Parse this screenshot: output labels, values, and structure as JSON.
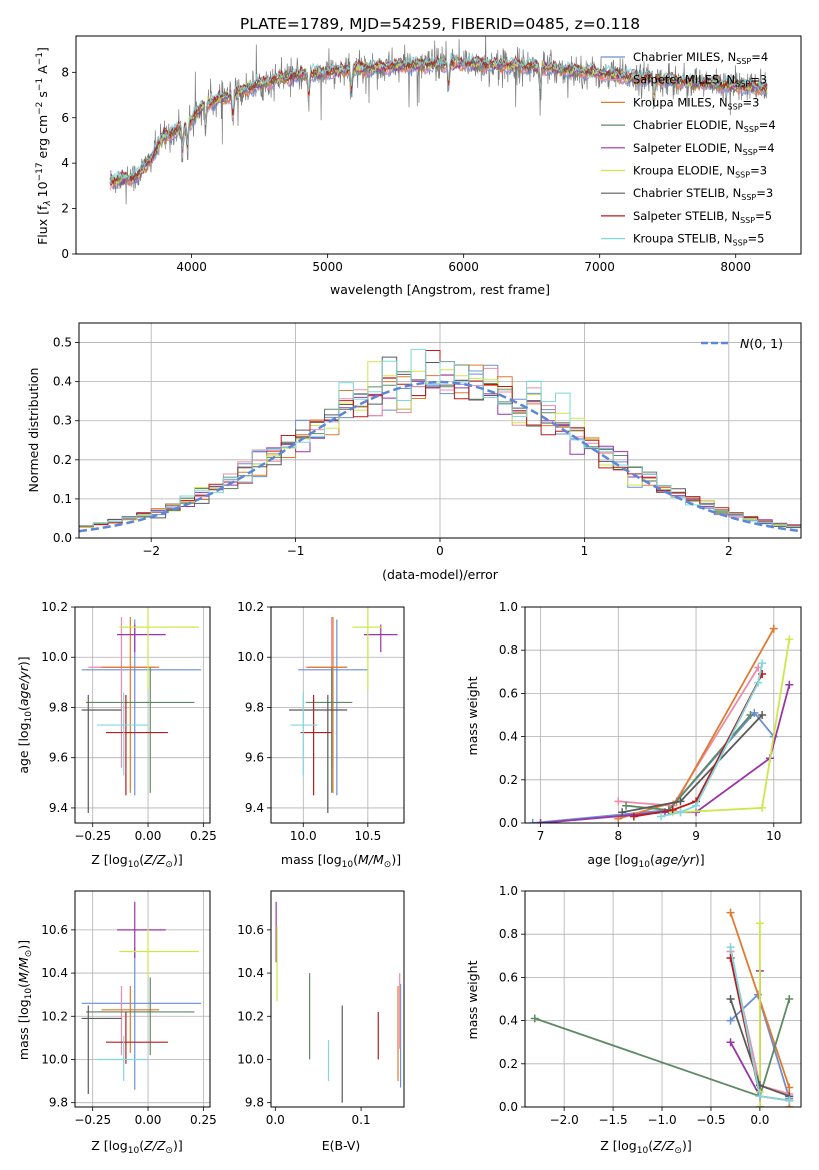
{
  "figure": {
    "title": "PLATE=1789, MJD=54259, FIBERID=0485, z=0.118"
  },
  "models": [
    {
      "name": "Chabrier MILES, N_SSP=4",
      "name_main": "Chabrier MILES, N",
      "name_sub": "SSP",
      "name_tail": "=4",
      "color": "#6a8fd8"
    },
    {
      "name": "Salpeter MILES, N_SSP=3",
      "name_main": "Salpeter MILES, N",
      "name_sub": "SSP",
      "name_tail": "=3",
      "color": "#f08aa8"
    },
    {
      "name": "Kroupa MILES, N_SSP=3",
      "name_main": "Kroupa MILES, N",
      "name_sub": "SSP",
      "name_tail": "=3",
      "color": "#e07a2e"
    },
    {
      "name": "Chabrier ELODIE, N_SSP=4",
      "name_main": "Chabrier ELODIE, N",
      "name_sub": "SSP",
      "name_tail": "=4",
      "color": "#5f8a64"
    },
    {
      "name": "Salpeter ELODIE, N_SSP=4",
      "name_main": "Salpeter ELODIE, N",
      "name_sub": "SSP",
      "name_tail": "=4",
      "color": "#9a35a8"
    },
    {
      "name": "Kroupa ELODIE, N_SSP=3",
      "name_main": "Kroupa ELODIE, N",
      "name_sub": "SSP",
      "name_tail": "=3",
      "color": "#cce84a"
    },
    {
      "name": "Chabrier STELIB, N_SSP=3",
      "name_main": "Chabrier STELIB, N",
      "name_sub": "SSP",
      "name_tail": "=3",
      "color": "#5a5a5a"
    },
    {
      "name": "Salpeter STELIB, N_SSP=5",
      "name_main": "Salpeter STELIB, N",
      "name_sub": "SSP",
      "name_tail": "=5",
      "color": "#b81c1c"
    },
    {
      "name": "Kroupa STELIB, N_SSP=5",
      "name_main": "Kroupa STELIB, N",
      "name_sub": "SSP",
      "name_tail": "=5",
      "color": "#7fd8dd"
    }
  ],
  "chart_data": [
    {
      "id": "spectrum",
      "type": "line",
      "xlabel": "wavelength [Angstrom, rest frame]",
      "ylabel": "Flux [f_λ 10^-17 erg cm^-2 s^-1 A^-1]",
      "ylabel_parts": {
        "a": "Flux [f",
        "b": "λ",
        "c": "10",
        "d": "−17",
        "e": " erg cm",
        "f": "−2",
        "g": " s",
        "h": "−1",
        "i": " A",
        "j": "−1",
        "k": "]"
      },
      "xlim": [
        3150,
        8480
      ],
      "ylim": [
        0,
        9.6
      ],
      "xticks": [
        4000,
        5000,
        6000,
        7000,
        8000
      ],
      "yticks": [
        0,
        2,
        4,
        6,
        8
      ],
      "x_range": [
        3400,
        8230
      ],
      "continuum_knots": {
        "x": [
          3400,
          3600,
          3700,
          3800,
          3950,
          4100,
          4300,
          4500,
          4800,
          5000,
          5300,
          5600,
          6000,
          6400,
          6800,
          7200,
          7600,
          8000,
          8230
        ],
        "y": [
          3.2,
          3.4,
          4.2,
          5.2,
          5.6,
          6.6,
          7.0,
          7.5,
          7.9,
          8.0,
          8.2,
          8.3,
          8.4,
          8.3,
          8.1,
          7.8,
          7.6,
          7.4,
          7.3
        ]
      },
      "absorption_lines": [
        3934,
        3969,
        4102,
        4304,
        4861,
        5175,
        5890,
        6563,
        7400
      ],
      "legend": "upper-right",
      "grid": false
    },
    {
      "id": "residuals",
      "type": "histogram",
      "xlabel": "(data-model)/error",
      "ylabel": "Normed distribution",
      "xlim": [
        -2.5,
        2.5
      ],
      "ylim": [
        0,
        0.55
      ],
      "xticks": [
        -2,
        -1,
        0,
        1,
        2
      ],
      "yticks": [
        0.0,
        0.1,
        0.2,
        0.3,
        0.4,
        0.5
      ],
      "bin_width": 0.1,
      "bin_range": [
        -2.5,
        2.5
      ],
      "reference": {
        "label": "N(0,1)",
        "label_main": "N",
        "label_tail": "(0, 1)",
        "color": "#5b86d9",
        "mean": 0,
        "sigma": 1
      },
      "legend": "upper-right",
      "grid": true
    },
    {
      "id": "age_vs_Z",
      "type": "errorbar",
      "xlabel": "Z [log10(Z/Z_sun)]",
      "ylabel": "age [log10(age/yr)]",
      "xlim": [
        -0.33,
        0.28
      ],
      "ylim": [
        9.34,
        10.2
      ],
      "xticks": [
        -0.25,
        0.0,
        0.25
      ],
      "yticks": [
        9.4,
        9.6,
        9.8,
        10.0,
        10.2
      ],
      "points": [
        {
          "model": 0,
          "x": -0.06,
          "xerr": [
            0.24,
            0.3
          ],
          "y": 9.95,
          "yerr": [
            0.5,
            0.2
          ]
        },
        {
          "model": 1,
          "x": -0.12,
          "xerr": [
            0.15,
            0.15
          ],
          "y": 9.96,
          "yerr": [
            0.4,
            0.2
          ]
        },
        {
          "model": 2,
          "x": -0.08,
          "xerr": [
            0.13,
            0.13
          ],
          "y": 9.96,
          "yerr": [
            0.5,
            0.2
          ]
        },
        {
          "model": 3,
          "x": 0.01,
          "xerr": [
            0.29,
            0.2
          ],
          "y": 9.82,
          "yerr": [
            0.36,
            0.14
          ]
        },
        {
          "model": 4,
          "x": -0.06,
          "xerr": [
            0.08,
            0.14
          ],
          "y": 10.09,
          "yerr": [
            0.07,
            0.04
          ]
        },
        {
          "model": 5,
          "x": 0.0,
          "xerr": [
            0.13,
            0.23
          ],
          "y": 10.12,
          "yerr": [
            0.25,
            0.08
          ]
        },
        {
          "model": 6,
          "x": -0.27,
          "xerr": [
            0.03,
            0.15
          ],
          "y": 9.79,
          "yerr": [
            0.41,
            0.06
          ]
        },
        {
          "model": 7,
          "x": -0.1,
          "xerr": [
            0.09,
            0.19
          ],
          "y": 9.7,
          "yerr": [
            0.25,
            0.15
          ]
        },
        {
          "model": 8,
          "x": -0.11,
          "xerr": [
            0.12,
            0.11
          ],
          "y": 9.73,
          "yerr": [
            0.2,
            0.13
          ]
        }
      ],
      "grid": true
    },
    {
      "id": "age_vs_mass",
      "type": "errorbar",
      "xlabel": "mass [log10(M/M_sun)]",
      "ylabel": "",
      "xlim": [
        9.75,
        10.78
      ],
      "ylim": [
        9.34,
        10.2
      ],
      "xticks": [
        10.0,
        10.5
      ],
      "yticks": [
        9.4,
        9.6,
        9.8,
        10.0,
        10.2
      ],
      "points": [
        {
          "model": 0,
          "x": 10.26,
          "xerr": [
            0.3,
            0.24
          ],
          "y": 9.95,
          "yerr": [
            0.5,
            0.2
          ]
        },
        {
          "model": 1,
          "x": 10.22,
          "xerr": [
            0.2,
            0.12
          ],
          "y": 9.96,
          "yerr": [
            0.4,
            0.2
          ]
        },
        {
          "model": 2,
          "x": 10.23,
          "xerr": [
            0.2,
            0.11
          ],
          "y": 9.96,
          "yerr": [
            0.5,
            0.2
          ]
        },
        {
          "model": 3,
          "x": 10.22,
          "xerr": [
            0.2,
            0.16
          ],
          "y": 9.82,
          "yerr": [
            0.36,
            0.14
          ]
        },
        {
          "model": 4,
          "x": 10.6,
          "xerr": [
            0.13,
            0.13
          ],
          "y": 10.09,
          "yerr": [
            0.07,
            0.04
          ]
        },
        {
          "model": 5,
          "x": 10.5,
          "xerr": [
            0.12,
            0.11
          ],
          "y": 10.12,
          "yerr": [
            0.25,
            0.08
          ]
        },
        {
          "model": 6,
          "x": 10.19,
          "xerr": [
            0.3,
            0.15
          ],
          "y": 9.79,
          "yerr": [
            0.41,
            0.06
          ]
        },
        {
          "model": 7,
          "x": 10.08,
          "xerr": [
            0.1,
            0.14
          ],
          "y": 9.7,
          "yerr": [
            0.25,
            0.15
          ]
        },
        {
          "model": 8,
          "x": 10.0,
          "xerr": [
            0.1,
            0.11
          ],
          "y": 9.73,
          "yerr": [
            0.2,
            0.13
          ]
        }
      ],
      "grid": true
    },
    {
      "id": "mass_weight_vs_age",
      "type": "line",
      "xlabel": "age [log10(age/yr)]",
      "ylabel": "mass weight",
      "xlim": [
        6.8,
        10.35
      ],
      "ylim": [
        0,
        1.0
      ],
      "xticks": [
        7,
        8,
        9,
        10
      ],
      "yticks": [
        0.0,
        0.2,
        0.4,
        0.6,
        0.8,
        1.0
      ],
      "series": [
        {
          "model": 0,
          "x": [
            6.9,
            8.65,
            9.75,
            10.0
          ],
          "y": [
            0.0,
            0.06,
            0.51,
            0.4
          ]
        },
        {
          "model": 1,
          "x": [
            8.0,
            8.7,
            9.8
          ],
          "y": [
            0.1,
            0.08,
            0.72
          ]
        },
        {
          "model": 2,
          "x": [
            8.0,
            8.75,
            10.0
          ],
          "y": [
            0.02,
            0.1,
            0.9
          ]
        },
        {
          "model": 3,
          "x": [
            8.1,
            8.65,
            9.7
          ],
          "y": [
            0.08,
            0.06,
            0.5
          ]
        },
        {
          "model": 4,
          "x": [
            7.0,
            8.6,
            9.0,
            9.95,
            10.2
          ],
          "y": [
            0.0,
            0.05,
            0.05,
            0.3,
            0.64
          ]
        },
        {
          "model": 5,
          "x": [
            8.7,
            8.8,
            9.85,
            10.2
          ],
          "y": [
            0.05,
            0.05,
            0.07,
            0.85
          ]
        },
        {
          "model": 6,
          "x": [
            8.05,
            8.8,
            9.85
          ],
          "y": [
            0.05,
            0.1,
            0.5
          ]
        },
        {
          "model": 7,
          "x": [
            8.2,
            8.7,
            9.0,
            9.85
          ],
          "y": [
            0.03,
            0.06,
            0.1,
            0.69
          ]
        },
        {
          "model": 8,
          "x": [
            8.55,
            8.8,
            9.0,
            9.8,
            9.85
          ],
          "y": [
            0.03,
            0.05,
            0.08,
            0.65,
            0.74
          ]
        }
      ],
      "grid": true
    },
    {
      "id": "mass_vs_Z",
      "type": "errorbar",
      "xlabel": "Z [log10(Z/Z_sun)]",
      "ylabel": "mass [log10(M/M_sun)]",
      "xlim": [
        -0.33,
        0.28
      ],
      "ylim": [
        9.78,
        10.78
      ],
      "xticks": [
        -0.25,
        0.0,
        0.25
      ],
      "yticks": [
        9.8,
        10.0,
        10.2,
        10.4,
        10.6
      ],
      "points": [
        {
          "model": 0,
          "x": -0.06,
          "xerr": [
            0.24,
            0.3
          ],
          "y": 10.26,
          "yerr": [
            0.4,
            0.26
          ]
        },
        {
          "model": 1,
          "x": -0.12,
          "xerr": [
            0.15,
            0.15
          ],
          "y": 10.22,
          "yerr": [
            0.2,
            0.12
          ]
        },
        {
          "model": 2,
          "x": -0.08,
          "xerr": [
            0.13,
            0.13
          ],
          "y": 10.23,
          "yerr": [
            0.2,
            0.11
          ]
        },
        {
          "model": 3,
          "x": 0.01,
          "xerr": [
            0.29,
            0.2
          ],
          "y": 10.22,
          "yerr": [
            0.2,
            0.16
          ]
        },
        {
          "model": 4,
          "x": -0.06,
          "xerr": [
            0.08,
            0.14
          ],
          "y": 10.6,
          "yerr": [
            0.13,
            0.13
          ]
        },
        {
          "model": 5,
          "x": 0.0,
          "xerr": [
            0.13,
            0.23
          ],
          "y": 10.5,
          "yerr": [
            0.12,
            0.11
          ]
        },
        {
          "model": 6,
          "x": -0.27,
          "xerr": [
            0.03,
            0.15
          ],
          "y": 10.19,
          "yerr": [
            0.35,
            0.06
          ]
        },
        {
          "model": 7,
          "x": -0.1,
          "xerr": [
            0.09,
            0.19
          ],
          "y": 10.08,
          "yerr": [
            0.1,
            0.14
          ]
        },
        {
          "model": 8,
          "x": -0.11,
          "xerr": [
            0.12,
            0.11
          ],
          "y": 10.0,
          "yerr": [
            0.1,
            0.11
          ]
        }
      ],
      "grid": true
    },
    {
      "id": "mass_vs_EBV",
      "type": "errorbar",
      "xlabel": "E(B-V)",
      "ylabel": "",
      "xlim": [
        -0.005,
        0.15
      ],
      "ylim": [
        9.78,
        10.78
      ],
      "xticks": [
        0.0,
        0.1
      ],
      "yticks": [
        9.8,
        10.0,
        10.2,
        10.4,
        10.6
      ],
      "points": [
        {
          "model": 0,
          "x": 0.146,
          "xerr": [
            0,
            0
          ],
          "y": 10.2,
          "yerr": [
            0.33,
            0.15
          ]
        },
        {
          "model": 1,
          "x": 0.145,
          "xerr": [
            0,
            0
          ],
          "y": 10.3,
          "yerr": [
            0.25,
            0.1
          ]
        },
        {
          "model": 2,
          "x": 0.143,
          "xerr": [
            0,
            0
          ],
          "y": 10.2,
          "yerr": [
            0.3,
            0.14
          ]
        },
        {
          "model": 3,
          "x": 0.04,
          "xerr": [
            0,
            0
          ],
          "y": 10.2,
          "yerr": [
            0.2,
            0.2
          ]
        },
        {
          "model": 4,
          "x": 0.001,
          "xerr": [
            0,
            0
          ],
          "y": 10.6,
          "yerr": [
            0.15,
            0.13
          ]
        },
        {
          "model": 5,
          "x": 0.002,
          "xerr": [
            0,
            0
          ],
          "y": 10.5,
          "yerr": [
            0.23,
            0.12
          ]
        },
        {
          "model": 6,
          "x": 0.078,
          "xerr": [
            0,
            0
          ],
          "y": 10.05,
          "yerr": [
            0.25,
            0.2
          ]
        },
        {
          "model": 7,
          "x": 0.12,
          "xerr": [
            0,
            0
          ],
          "y": 10.1,
          "yerr": [
            0.1,
            0.12
          ]
        },
        {
          "model": 8,
          "x": 0.062,
          "xerr": [
            0,
            0
          ],
          "y": 9.96,
          "yerr": [
            0.06,
            0.13
          ]
        }
      ],
      "grid": false
    },
    {
      "id": "mass_weight_vs_Z",
      "type": "line",
      "xlabel": "Z [log10(Z/Z_sun)]",
      "ylabel": "mass weight",
      "xlim": [
        -2.4,
        0.42
      ],
      "ylim": [
        0,
        1.0
      ],
      "xticks": [
        -2.0,
        -1.5,
        -1.0,
        -0.5,
        0.0
      ],
      "yticks": [
        0.0,
        0.2,
        0.4,
        0.6,
        0.8,
        1.0
      ],
      "series": [
        {
          "model": 0,
          "x": [
            -0.3,
            -0.02,
            0.3
          ],
          "y": [
            0.4,
            0.52,
            0.04
          ]
        },
        {
          "model": 1,
          "x": [
            -0.3,
            0.0,
            0.3
          ],
          "y": [
            0.72,
            0.1,
            0.06
          ]
        },
        {
          "model": 2,
          "x": [
            -0.3,
            0.3,
            0.3
          ],
          "y": [
            0.9,
            0.09,
            0.0
          ]
        },
        {
          "model": 3,
          "x": [
            -2.3,
            0.0,
            0.3
          ],
          "y": [
            0.41,
            0.05,
            0.5
          ]
        },
        {
          "model": 4,
          "x": [
            -0.3,
            0.0,
            0.0,
            0.0
          ],
          "y": [
            0.3,
            0.05,
            0.63,
            0.0
          ]
        },
        {
          "model": 5,
          "x": [
            0.0,
            0.0,
            0.0
          ],
          "y": [
            0.85,
            0.0,
            0.07
          ]
        },
        {
          "model": 6,
          "x": [
            -0.3,
            0.0,
            0.3
          ],
          "y": [
            0.5,
            0.1,
            0.05
          ]
        },
        {
          "model": 7,
          "x": [
            -0.3,
            0.0,
            0.3
          ],
          "y": [
            0.69,
            0.05,
            0.03
          ]
        },
        {
          "model": 8,
          "x": [
            -0.3,
            0.0,
            0.3
          ],
          "y": [
            0.74,
            0.05,
            0.03
          ]
        }
      ],
      "grid": true
    }
  ]
}
